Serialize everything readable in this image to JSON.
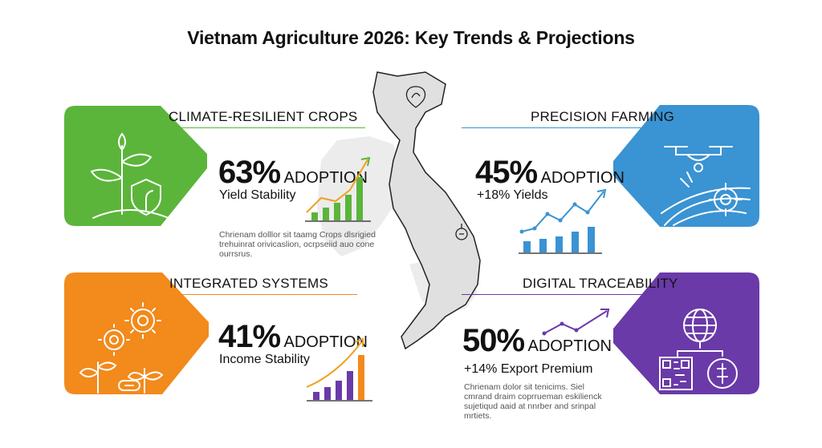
{
  "title": "Vietnam Agriculture 2026: Key Trends & Projections",
  "colors": {
    "green": "#5bb53a",
    "blue": "#3a93d2",
    "orange": "#f28a1c",
    "purple": "#6a3aa8",
    "map": "#e6e6e6"
  },
  "panels": {
    "climate": {
      "title": "CLIMATE-RESILIENT CROPS",
      "percent": "63%",
      "adoption": "ADOPTION",
      "subtitle": "Yield Stability",
      "description": "Chrienam dolllor sit taamg Crops dlsrigied trehuinrat orivicaslion, ocrpseiid auo cone ourrsrus.",
      "icon": "sprout-shield-icon"
    },
    "precision": {
      "title": "PRECISION FARMING",
      "percent": "45%",
      "adoption": "ADOPTION",
      "subtitle": "+18% Yields",
      "icon": "drone-field-icon"
    },
    "integrated": {
      "title": "INTEGRATED SYSTEMS",
      "percent": "41%",
      "adoption": "ADOPTION",
      "subtitle": "Income Stability",
      "icon": "gears-plants-icon"
    },
    "digital": {
      "title": "DIGITAL TRACEABILITY",
      "percent": "50%",
      "adoption": "ADOPTION",
      "subtitle": "+14% Export Premium",
      "description": "Chrienam dolor sit tenicims. Siel cmrand draim coprrueman eskilienck sujetiqud aaid at nnrber and srinpal mrtiets.",
      "icon": "globe-qr-icon"
    }
  }
}
